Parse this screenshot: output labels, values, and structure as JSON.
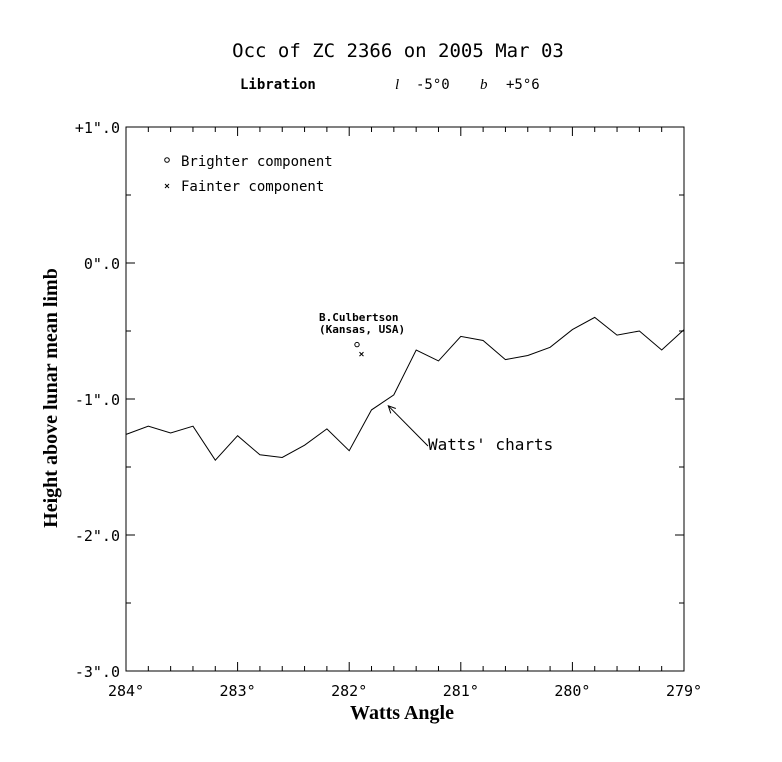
{
  "chart_data": {
    "type": "line",
    "title": "Occ of ZC 2366 on 2005 Mar 03",
    "libration": {
      "label": "Libration",
      "l_symbol": "l",
      "l_value": "-5°0",
      "b_symbol": "b",
      "b_value": "+5°6"
    },
    "xlabel": "Watts Angle",
    "ylabel": "Height above lunar mean limb",
    "xlim": [
      284,
      279
    ],
    "ylim": [
      -3.0,
      1.0
    ],
    "x_tick_labels": [
      "284°",
      "283°",
      "282°",
      "281°",
      "280°",
      "279°"
    ],
    "y_tick_labels": [
      "+1\".0",
      "0\".0",
      "-1\".0",
      "-2\".0",
      "-3\".0"
    ],
    "legend": {
      "placement": "top-left",
      "entries": [
        {
          "marker": "circle",
          "label": "Brighter component"
        },
        {
          "marker": "cross",
          "label": "Fainter component"
        }
      ]
    },
    "series": [
      {
        "name": "Watts' charts",
        "x": [
          284.0,
          283.8,
          283.6,
          283.4,
          283.2,
          283.0,
          282.8,
          282.6,
          282.4,
          282.2,
          282.0,
          281.8,
          281.6,
          281.4,
          281.2,
          281.0,
          280.8,
          280.6,
          280.4,
          280.2,
          280.0,
          279.8,
          279.6,
          279.4,
          279.2,
          279.0
        ],
        "y": [
          -1.26,
          -1.2,
          -1.25,
          -1.2,
          -1.45,
          -1.27,
          -1.41,
          -1.43,
          -1.34,
          -1.22,
          -1.38,
          -1.08,
          -0.97,
          -0.64,
          -0.72,
          -0.54,
          -0.57,
          -0.71,
          -0.68,
          -0.62,
          -0.49,
          -0.4,
          -0.53,
          -0.5,
          -0.64,
          -0.49
        ]
      }
    ],
    "observations": [
      {
        "component": "brighter",
        "x": 281.93,
        "y": -0.6
      },
      {
        "component": "fainter",
        "x": 281.89,
        "y": -0.67
      }
    ],
    "observer": {
      "name": "B.Culbertson",
      "location": "(Kansas, USA)"
    },
    "annotation": {
      "text": "Watts' charts",
      "points_to_x": 281.65,
      "points_to_y": -1.05
    }
  }
}
